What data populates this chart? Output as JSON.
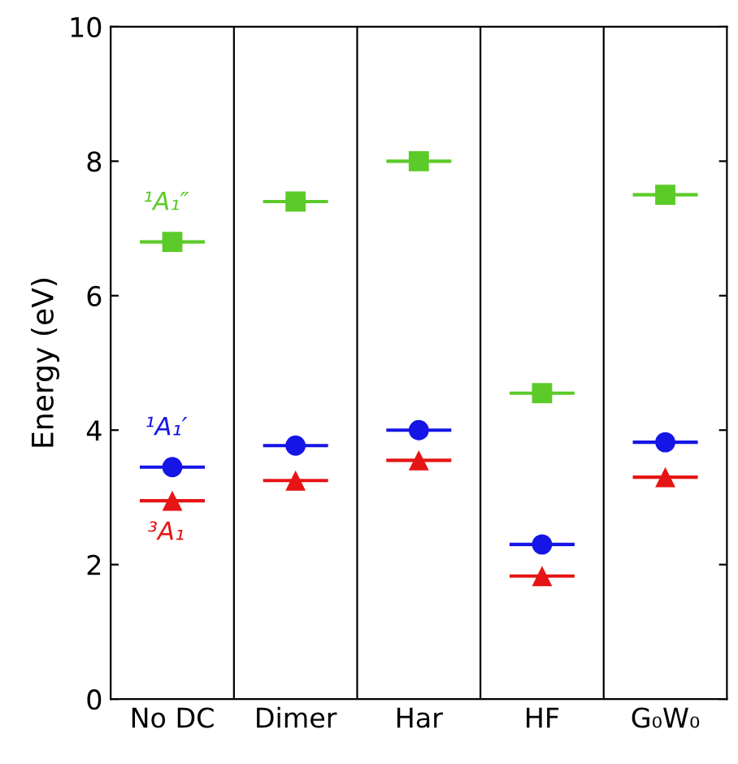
{
  "chart_data": {
    "type": "scatter",
    "ylabel": "Energy (eV)",
    "categories": [
      "No DC",
      "Dimer",
      "Har",
      "HF",
      "G₀W₀"
    ],
    "series": [
      {
        "name": "¹A₁″",
        "color": "#5ccb2a",
        "marker": "square",
        "values": [
          6.8,
          7.4,
          8.0,
          4.55,
          7.5
        ]
      },
      {
        "name": "¹A₁′",
        "color": "#1515e6",
        "marker": "circle",
        "values": [
          3.45,
          3.77,
          4.0,
          2.3,
          3.82
        ]
      },
      {
        "name": "³A₁",
        "color": "#e61515",
        "marker": "triangle",
        "values": [
          2.95,
          3.25,
          3.55,
          1.83,
          3.3
        ]
      }
    ],
    "ylim": [
      0,
      10
    ],
    "yticks": [
      0,
      2,
      4,
      6,
      8,
      10
    ],
    "grid": "x",
    "legend": "left"
  }
}
